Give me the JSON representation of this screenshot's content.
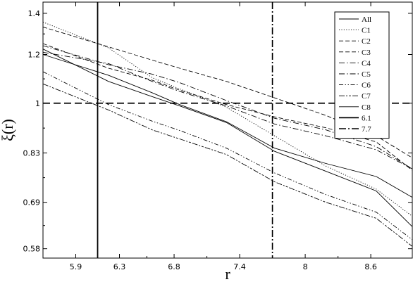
{
  "chart_data": {
    "type": "line",
    "xlabel": "r",
    "ylabel": "ξ(r)",
    "xlim": [
      5.6,
      8.98
    ],
    "ylim": [
      0.56,
      1.46
    ],
    "y_scale": "log",
    "x_ticks": [
      5.9,
      6.3,
      6.8,
      7.4,
      8,
      8.6
    ],
    "y_ticks": [
      0.58,
      0.69,
      0.83,
      1,
      1.2,
      1.4
    ],
    "x_tick_labels": [
      "5.9",
      "6.3",
      "6.8",
      "7.4",
      "8",
      "8.6"
    ],
    "y_tick_labels": [
      "0.58",
      "0.69",
      "0.83",
      "1",
      "1.2",
      "1.4"
    ],
    "grid": false,
    "legend_position": "top-right",
    "x": [
      5.6,
      6.2,
      6.6,
      6.85,
      7.28,
      7.72,
      8.19,
      8.65,
      8.98
    ],
    "series": [
      {
        "name": "All",
        "style": "solid",
        "values": [
          1.2,
          1.11,
          1.04,
          0.995,
          0.933,
          0.845,
          0.798,
          0.76,
          0.703
        ]
      },
      {
        "name": "C1",
        "style": "dotted",
        "values": [
          1.355,
          1.23,
          1.1,
          1.055,
          0.985,
          0.885,
          0.79,
          0.725,
          0.655
        ]
      },
      {
        "name": "C2",
        "style": "dashed",
        "values": [
          1.33,
          1.235,
          1.175,
          1.14,
          1.085,
          1.02,
          0.955,
          0.885,
          0.815
        ]
      },
      {
        "name": "C3",
        "style": "dashed",
        "values": [
          1.25,
          1.14,
          1.09,
          1.05,
          0.995,
          0.95,
          0.912,
          0.865,
          0.778
        ]
      },
      {
        "name": "C4",
        "style": "dash-dot",
        "values": [
          1.24,
          1.155,
          1.115,
          1.08,
          1.01,
          0.945,
          0.905,
          0.85,
          0.782
        ]
      },
      {
        "name": "C5",
        "style": "dash-dot",
        "values": [
          1.21,
          1.16,
          1.085,
          1.045,
          0.99,
          0.925,
          0.885,
          0.84,
          0.782
        ]
      },
      {
        "name": "C6",
        "style": "dash-dot-dot",
        "values": [
          1.125,
          0.995,
          0.935,
          0.903,
          0.845,
          0.77,
          0.71,
          0.665,
          0.6
        ]
      },
      {
        "name": "C7",
        "style": "dash-dot-dash",
        "values": [
          1.075,
          0.975,
          0.905,
          0.875,
          0.825,
          0.745,
          0.69,
          0.65,
          0.585
        ]
      },
      {
        "name": "C8",
        "style": "solid",
        "values": [
          1.225,
          1.085,
          1.025,
          0.99,
          0.93,
          0.835,
          0.775,
          0.72,
          0.63
        ]
      }
    ],
    "reference_lines": [
      {
        "name": "6.1",
        "orientation": "vertical",
        "value": 6.1,
        "style": "solid-thick"
      },
      {
        "name": "7.7",
        "orientation": "vertical",
        "value": 7.7,
        "style": "dash-dot-thick"
      },
      {
        "name": "",
        "orientation": "horizontal",
        "value": 1.0,
        "style": "dashed-thick"
      }
    ],
    "legend": [
      "All",
      "C1",
      "C2",
      "C3",
      "C4",
      "C5",
      "C6",
      "C7",
      "C8",
      "6.1",
      "7.7"
    ]
  }
}
